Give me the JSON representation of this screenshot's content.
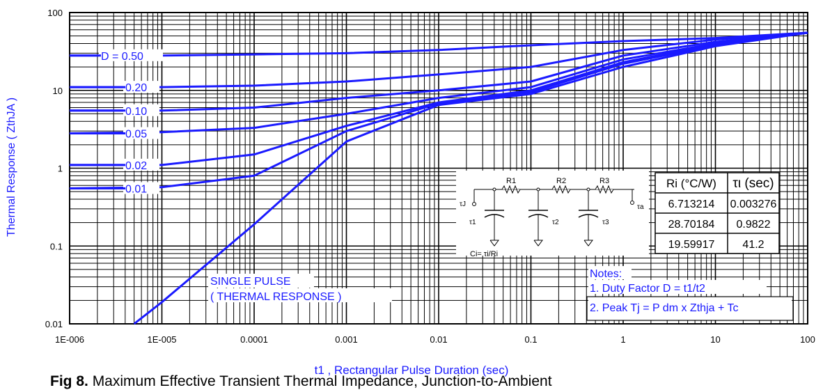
{
  "chart_data": {
    "type": "line",
    "xscale": "log",
    "yscale": "log",
    "xlim": [
      1e-06,
      100
    ],
    "ylim": [
      0.01,
      100
    ],
    "xlabel": "t1 , Rectangular Pulse Duration (sec)",
    "ylabel": "Thermal Response ( ZthJA )",
    "x_ticks": [
      "1E-006",
      "1E-005",
      "0.0001",
      "0.001",
      "0.01",
      "0.1",
      "1",
      "10",
      "100"
    ],
    "y_ticks": [
      "100",
      "10",
      "1",
      "0.1",
      "0.01"
    ],
    "grid": true,
    "series": [
      {
        "name": "D = 0.50",
        "x": [
          1e-06,
          1e-05,
          0.0001,
          0.001,
          0.01,
          0.1,
          1,
          10,
          100
        ],
        "y": [
          28,
          28,
          29,
          30,
          33,
          38,
          43,
          47,
          55
        ]
      },
      {
        "name": "0.20",
        "x": [
          1e-06,
          1e-05,
          0.0001,
          0.001,
          0.01,
          0.1,
          1,
          10,
          100
        ],
        "y": [
          11,
          11,
          11.5,
          13,
          16,
          20,
          33,
          45,
          55
        ]
      },
      {
        "name": "0.10",
        "x": [
          1e-06,
          1e-05,
          0.0001,
          0.001,
          0.01,
          0.1,
          1,
          10,
          100
        ],
        "y": [
          5.5,
          5.5,
          6,
          8,
          10,
          13,
          28,
          42,
          55
        ]
      },
      {
        "name": "0.05",
        "x": [
          1e-06,
          1e-05,
          0.0001,
          0.001,
          0.01,
          0.1,
          1,
          10,
          100
        ],
        "y": [
          2.8,
          2.9,
          3.3,
          5,
          8,
          11,
          25,
          40,
          55
        ]
      },
      {
        "name": "0.02",
        "x": [
          1e-06,
          1e-05,
          0.0001,
          0.001,
          0.01,
          0.1,
          1,
          10,
          100
        ],
        "y": [
          1.1,
          1.1,
          1.5,
          3.5,
          7,
          10,
          23,
          39,
          55
        ]
      },
      {
        "name": "0.01",
        "x": [
          1e-06,
          1e-05,
          0.0001,
          0.001,
          0.01,
          0.1,
          1,
          10,
          100
        ],
        "y": [
          0.55,
          0.57,
          0.8,
          3,
          6.8,
          9.5,
          22,
          38,
          55
        ]
      },
      {
        "name": "SINGLE PULSE",
        "x": [
          5e-06,
          1e-05,
          0.0001,
          0.001,
          0.01,
          0.1,
          1,
          10,
          100
        ],
        "y": [
          0.01,
          0.019,
          0.19,
          2.2,
          6.5,
          9,
          20,
          37,
          55
        ]
      }
    ],
    "annotations": {
      "single_pulse": [
        "SINGLE PULSE",
        "( THERMAL RESPONSE )"
      ],
      "notes": [
        "Notes:",
        "1. Duty Factor D = t1/t2",
        "2. Peak Tj = P dm x Zthja + Tc"
      ]
    },
    "table": {
      "headers": [
        "Ri (°C/W)",
        "τι (sec)"
      ],
      "rows": [
        [
          "6.713214",
          "0.003276"
        ],
        [
          "28.70184",
          "0.9822"
        ],
        [
          "19.59917",
          "41.2"
        ]
      ]
    },
    "circuit": {
      "resistors": [
        "R1",
        "R2",
        "R3"
      ],
      "taus": [
        "τ1",
        "τ2",
        "τ3"
      ],
      "left_node": "τJ",
      "right_node": "τa",
      "formula": "Ci= τi/Ri"
    }
  },
  "caption": {
    "prefix": "Fig 8.",
    "text": "Maximum Effective Transient Thermal Impedance, Junction-to-Ambient"
  },
  "colors": {
    "curve": "#1a1aff",
    "grid": "#000000",
    "label": "#1a1aff"
  }
}
